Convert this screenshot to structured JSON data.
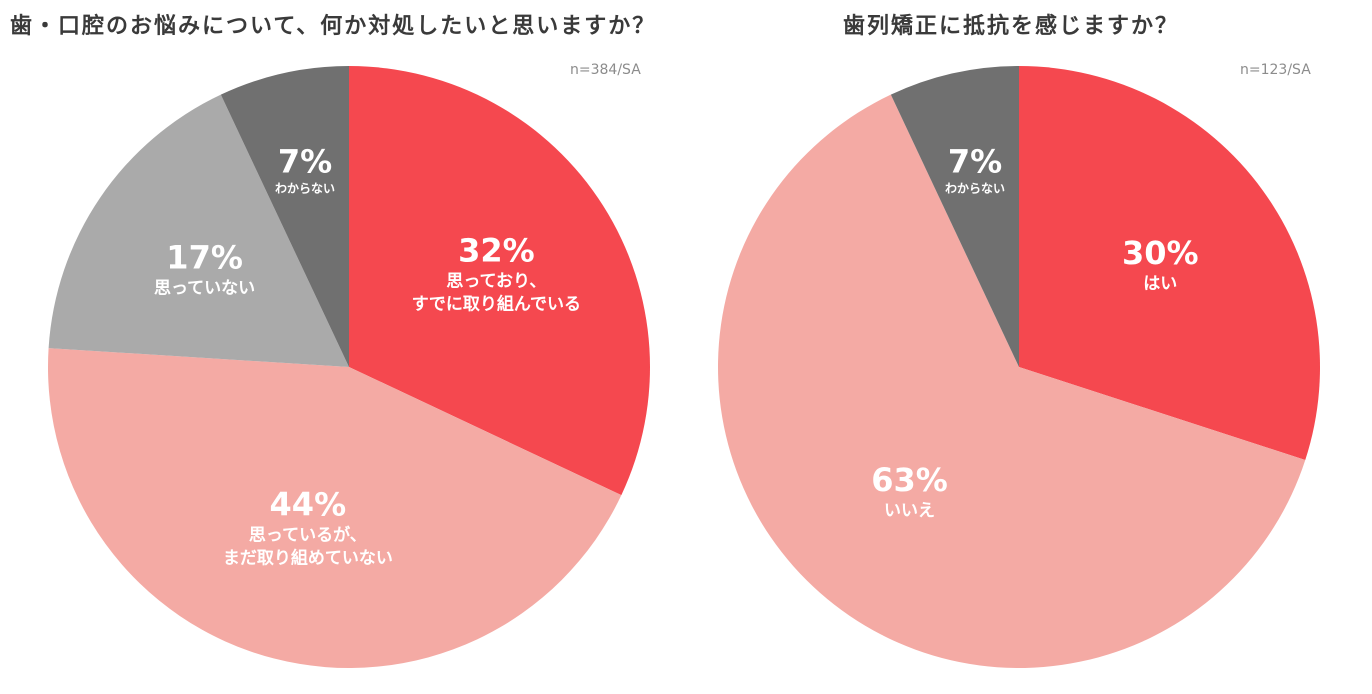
{
  "chart_data": [
    {
      "type": "pie",
      "title": "歯・口腔のお悩みについて、何か対処したいと思いますか？",
      "sample": "n=384/SA",
      "slices": [
        {
          "pct_label": "32%",
          "label": [
            "思っており、",
            "すでに取り組んでいる"
          ],
          "value": 32,
          "color": "#f5484f"
        },
        {
          "pct_label": "44%",
          "label": [
            "思っているが、",
            "まだ取り組めていない"
          ],
          "value": 44,
          "color": "#f4aaa4"
        },
        {
          "pct_label": "17%",
          "label": [
            "思っていない"
          ],
          "value": 17,
          "color": "#aaaaaa"
        },
        {
          "pct_label": "7%",
          "label": [
            "わからない"
          ],
          "value": 7,
          "color": "#707070"
        }
      ]
    },
    {
      "type": "pie",
      "title": "歯列矯正に抵抗を感じますか？",
      "sample": "n=123/SA",
      "slices": [
        {
          "pct_label": "30%",
          "label": [
            "はい"
          ],
          "value": 30,
          "color": "#f5484f"
        },
        {
          "pct_label": "63%",
          "label": [
            "いいえ"
          ],
          "value": 63,
          "color": "#f4aaa4"
        },
        {
          "pct_label": "7%",
          "label": [
            "わからない"
          ],
          "value": 7,
          "color": "#707070"
        }
      ]
    }
  ]
}
